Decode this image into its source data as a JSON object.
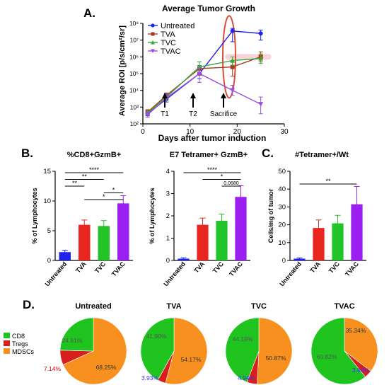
{
  "colors": {
    "blue": "#1f24e8",
    "red": "#e8251f",
    "green": "#22c42a",
    "purple": "#9a1ff0",
    "untreated": "#1f24e8",
    "tva": "#a83a1c",
    "tvc": "#3aa83a",
    "tvac": "#9a4fe0",
    "orange": "#f7901e",
    "cd8": "#1fc41f",
    "tregs": "#d81e1e",
    "mdsc": "#f7901e",
    "highlight": "#d94f3a",
    "highlight_fill": "#f4c6cc"
  },
  "panels": {
    "a": {
      "letter": "A."
    },
    "b": {
      "letter": "B."
    },
    "c": {
      "letter": "C."
    },
    "d": {
      "letter": "D."
    }
  },
  "annotations": {
    "t1": "T1",
    "t2": "T2",
    "sacrifice": "Sacrifice"
  },
  "chart_data": [
    {
      "id": "A",
      "type": "line",
      "title": "Average Tumor Growth",
      "xlabel": "Days after tumor induction",
      "ylabel": "Average ROI [p/s/cm²/sr]",
      "xlim": [
        0,
        30
      ],
      "ylim_log10": [
        2,
        8
      ],
      "y_scale": "log",
      "xticks": [
        "0",
        "10",
        "20",
        "30"
      ],
      "yticks": [
        "10²",
        "10³",
        "10⁴",
        "10⁵",
        "10⁶",
        "10⁷",
        "10⁸"
      ],
      "legend": "top-left",
      "series": [
        {
          "name": "Untreated",
          "color": "#1f24e8",
          "x": [
            1,
            5,
            12,
            19,
            25
          ],
          "y": [
            400,
            3000,
            100000,
            35000000,
            25000000
          ],
          "err_low": [
            300,
            2000,
            50000,
            8000000,
            10000000
          ],
          "err_high": [
            600,
            5000,
            300000,
            50000000,
            40000000
          ]
        },
        {
          "name": "TVA",
          "color": "#a83a1c",
          "x": [
            1,
            5,
            12,
            19,
            25
          ],
          "y": [
            500,
            5000,
            200000,
            250000,
            1000000
          ],
          "err_low": [
            400,
            3000,
            80000,
            70000,
            500000
          ],
          "err_high": [
            700,
            7000,
            500000,
            600000,
            2000000
          ]
        },
        {
          "name": "TVC",
          "color": "#3aa83a",
          "x": [
            1,
            5,
            12,
            19,
            25
          ],
          "y": [
            450,
            4000,
            250000,
            600000,
            800000
          ],
          "err_low": [
            350,
            2500,
            120000,
            300000,
            400000
          ],
          "err_high": [
            600,
            6000,
            500000,
            1000000,
            1500000
          ]
        },
        {
          "name": "TVAC",
          "color": "#9a4fe0",
          "x": [
            1,
            5,
            12,
            19,
            25
          ],
          "y": [
            350,
            3500,
            100000,
            10000,
            1500
          ],
          "err_low": [
            250,
            2000,
            30000,
            5000,
            400
          ],
          "err_high": [
            500,
            6000,
            200000,
            20000,
            4000
          ]
        }
      ]
    },
    {
      "id": "B1",
      "type": "bar",
      "title": "%CD8+GzmB+",
      "ylabel": "% of Lymphocytes",
      "categories": [
        "Untreated",
        "TVA",
        "TVC",
        "TVAC"
      ],
      "values": [
        1.4,
        6.0,
        5.8,
        9.6
      ],
      "errors": [
        0.3,
        0.8,
        0.9,
        1.3
      ],
      "ylim": [
        0,
        15
      ],
      "yticks": [
        "0",
        "5",
        "10",
        "15"
      ],
      "significance": [
        {
          "from": 0,
          "to": 3,
          "label": "****"
        },
        {
          "from": 0,
          "to": 2,
          "label": "**"
        },
        {
          "from": 0,
          "to": 1,
          "label": "**"
        },
        {
          "from": 2,
          "to": 3,
          "label": "*"
        },
        {
          "from": 1,
          "to": 3,
          "label": "*"
        }
      ]
    },
    {
      "id": "B2",
      "type": "bar",
      "title": "E7 Tetramer+ GzmB+",
      "ylabel": "% of Lymphocytes",
      "categories": [
        "Untreated",
        "TVA",
        "TVC",
        "TVAC"
      ],
      "values": [
        0.08,
        1.6,
        1.78,
        2.85
      ],
      "errors": [
        0.04,
        0.3,
        0.3,
        0.5
      ],
      "ylim": [
        0,
        4
      ],
      "yticks": [
        "0",
        "1",
        "2",
        "3",
        "4"
      ],
      "significance": [
        {
          "from": 0,
          "to": 3,
          "label": "****"
        },
        {
          "from": 1,
          "to": 3,
          "label": "*"
        },
        {
          "from": 2,
          "to": 3,
          "label": "0.0680"
        }
      ]
    },
    {
      "id": "C",
      "type": "bar",
      "title": "#Tetramer+/Wt",
      "ylabel": "Cells/mg of tumor",
      "categories": [
        "Untreated",
        "TVA",
        "TVC",
        "TVAC"
      ],
      "values": [
        1.0,
        18.2,
        20.8,
        31.5
      ],
      "errors": [
        0.4,
        4.5,
        4.5,
        10.0
      ],
      "ylim": [
        0,
        50
      ],
      "yticks": [
        "0",
        "10",
        "20",
        "30",
        "40",
        "50"
      ],
      "significance": [
        {
          "from": 0,
          "to": 3,
          "label": "**"
        }
      ]
    },
    {
      "id": "D",
      "type": "pie",
      "legend": [
        "CD8",
        "Tregs",
        "MDSCs"
      ],
      "legend_colors": [
        "#1fc41f",
        "#d81e1e",
        "#f7901e"
      ],
      "pies": [
        {
          "title": "Untreated",
          "values": [
            24.61,
            7.14,
            68.25
          ],
          "labels": [
            "24.61%",
            "7.14%",
            "68.25%"
          ]
        },
        {
          "title": "TVA",
          "values": [
            41.9,
            3.93,
            54.17
          ],
          "labels": [
            "41.90%",
            "3.93%",
            "54.17%"
          ]
        },
        {
          "title": "TVC",
          "values": [
            44.19,
            4.94,
            50.87
          ],
          "labels": [
            "44.19%",
            "4.94%",
            "50.87%"
          ]
        },
        {
          "title": "TVAC",
          "values": [
            60.82,
            3.84,
            35.34
          ],
          "labels": [
            "60.82%",
            "3.84%",
            "35.34%"
          ]
        }
      ]
    }
  ]
}
